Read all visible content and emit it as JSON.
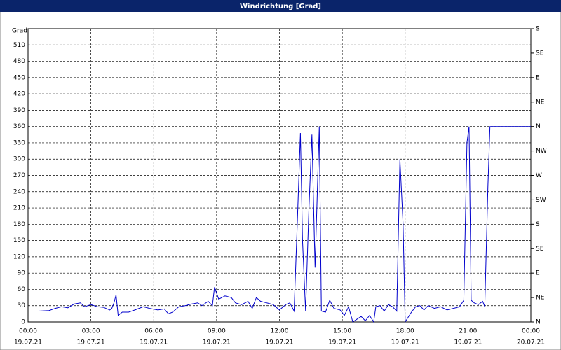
{
  "chart_data": {
    "type": "line",
    "title": "Windrichtung [Grad]",
    "y_label": "Grad",
    "xlim": [
      0,
      24
    ],
    "xticks": [
      {
        "value": 0,
        "label": "00:00"
      },
      {
        "value": 3,
        "label": "03:00"
      },
      {
        "value": 6,
        "label": "06:00"
      },
      {
        "value": 9,
        "label": "09:00"
      },
      {
        "value": 12,
        "label": "12:00"
      },
      {
        "value": 15,
        "label": "15:00"
      },
      {
        "value": 18,
        "label": "18:00"
      },
      {
        "value": 21,
        "label": "21:00"
      },
      {
        "value": 24,
        "label": "00:00"
      }
    ],
    "xtick_dates": [
      "19.07.21",
      "19.07.21",
      "19.07.21",
      "19.07.21",
      "19.07.21",
      "19.07.21",
      "19.07.21",
      "19.07.21",
      "20.07.21"
    ],
    "ylim": [
      0,
      540
    ],
    "yticks": [
      0,
      30,
      60,
      90,
      120,
      150,
      180,
      210,
      240,
      270,
      300,
      330,
      360,
      390,
      420,
      450,
      480,
      510
    ],
    "y2lim": [
      0,
      540
    ],
    "y2ticks": [
      {
        "value": 0,
        "label": "N"
      },
      {
        "value": 45,
        "label": "NE"
      },
      {
        "value": 90,
        "label": "E"
      },
      {
        "value": 135,
        "label": "SE"
      },
      {
        "value": 180,
        "label": "S"
      },
      {
        "value": 225,
        "label": "SW"
      },
      {
        "value": 270,
        "label": "W"
      },
      {
        "value": 315,
        "label": "NW"
      },
      {
        "value": 360,
        "label": "N"
      },
      {
        "value": 405,
        "label": "NE"
      },
      {
        "value": 450,
        "label": "E"
      },
      {
        "value": 495,
        "label": "SE"
      },
      {
        "value": 540,
        "label": "S"
      }
    ],
    "grid": true,
    "series": [
      {
        "name": "Windrichtung",
        "color": "#0000cc",
        "x": [
          0,
          0.5,
          1,
          1.3,
          1.6,
          1.9,
          2.2,
          2.5,
          2.7,
          3,
          3.3,
          3.6,
          3.9,
          4.0,
          4.1,
          4.2,
          4.3,
          4.5,
          4.8,
          5.1,
          5.5,
          5.8,
          6.2,
          6.5,
          6.7,
          6.9,
          7.2,
          7.5,
          7.8,
          8.1,
          8.3,
          8.6,
          8.8,
          8.9,
          9.1,
          9.4,
          9.7,
          9.9,
          10.2,
          10.5,
          10.7,
          10.9,
          11.1,
          11.4,
          11.7,
          12,
          12.3,
          12.5,
          12.7,
          12.85,
          13.0,
          13.1,
          13.25,
          13.4,
          13.55,
          13.7,
          13.9,
          14.0,
          14.2,
          14.4,
          14.6,
          14.9,
          15.1,
          15.3,
          15.5,
          15.7,
          15.9,
          16.1,
          16.3,
          16.5,
          16.6,
          16.8,
          17.0,
          17.2,
          17.4,
          17.6,
          17.75,
          17.9,
          18.0,
          18.3,
          18.5,
          18.7,
          18.9,
          19.1,
          19.4,
          19.7,
          20,
          20.3,
          20.6,
          20.8,
          20.95,
          21.05,
          21.15,
          21.3,
          21.5,
          21.7,
          21.8,
          21.95,
          22.05,
          24
        ],
        "values": [
          20,
          20,
          21,
          25,
          28,
          26,
          33,
          35,
          28,
          32,
          28,
          27,
          22,
          25,
          35,
          50,
          12,
          18,
          18,
          22,
          28,
          25,
          22,
          24,
          15,
          18,
          28,
          30,
          33,
          35,
          30,
          38,
          30,
          64,
          42,
          48,
          45,
          35,
          32,
          38,
          25,
          45,
          38,
          35,
          32,
          22,
          32,
          35,
          20,
          180,
          348,
          150,
          20,
          200,
          345,
          100,
          360,
          20,
          18,
          40,
          25,
          22,
          12,
          28,
          0,
          5,
          10,
          2,
          12,
          0,
          28,
          30,
          20,
          32,
          28,
          20,
          300,
          180,
          0,
          18,
          28,
          30,
          22,
          30,
          25,
          28,
          22,
          25,
          28,
          40,
          330,
          360,
          40,
          35,
          32,
          38,
          28,
          250,
          360,
          360
        ]
      }
    ]
  }
}
